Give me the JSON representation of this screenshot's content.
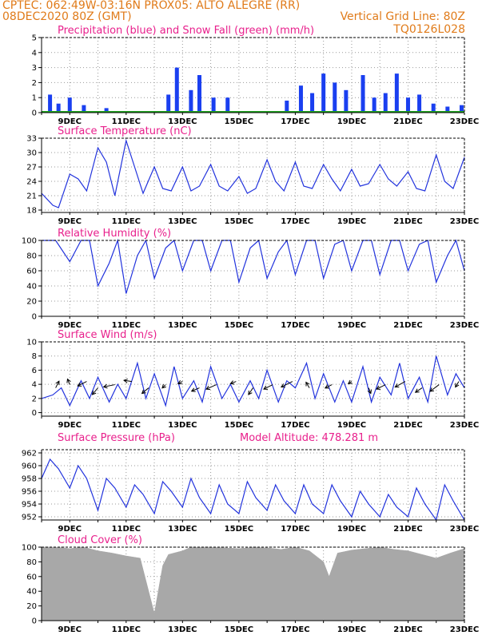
{
  "header": {
    "line1_left": "CPTEC:   062:49W-03:16N   PROX05: ALTO ALEGRE (RR)",
    "line2_left": "08DEC2020 80Z (GMT)",
    "line2_right": "Vertical Grid Line: 80Z",
    "line3_right": "TQ0126L028"
  },
  "x_axis_labels": [
    "9DEC",
    "11DEC",
    "13DEC",
    "15DEC",
    "17DEC",
    "19DEC",
    "21DEC",
    "23DEC"
  ],
  "colors": {
    "precip": "#1a3ff0",
    "snow": "#1fa31f",
    "line": "#2233dd",
    "cloud": "#a8a8a8",
    "title": "#e8208c",
    "header": "#e07b1a"
  },
  "chart_data": [
    {
      "type": "bar",
      "title": "Precipitation (blue) and Snow Fall (green) (mm/h)",
      "yticks": [
        0,
        1,
        2,
        3,
        4,
        5
      ],
      "ylim": [
        0,
        5
      ],
      "xlim": [
        8,
        23
      ],
      "grid": true,
      "series": [
        {
          "name": "Precipitation",
          "x": [
            8.3,
            8.6,
            9.0,
            9.5,
            10.3,
            12.5,
            12.8,
            13.3,
            13.6,
            14.1,
            14.6,
            16.7,
            17.2,
            17.6,
            18.0,
            18.4,
            18.8,
            19.4,
            19.8,
            20.2,
            20.6,
            21.0,
            21.4,
            21.9,
            22.4,
            22.9
          ],
          "values": [
            1.2,
            0.6,
            1.0,
            0.5,
            0.3,
            1.2,
            3.0,
            1.5,
            2.5,
            1.0,
            1.0,
            0.8,
            1.8,
            1.3,
            2.6,
            2.0,
            1.5,
            2.5,
            1.0,
            1.3,
            2.6,
            1.0,
            1.2,
            0.6,
            0.4,
            0.5
          ]
        },
        {
          "name": "Snow Fall",
          "x": [
            8.0,
            23.0
          ],
          "values": [
            0.05,
            0.05
          ]
        }
      ]
    },
    {
      "type": "line",
      "title": "Surface Temperature (nC)",
      "yticks": [
        18,
        21,
        24,
        27,
        30,
        33
      ],
      "ylim": [
        17.5,
        33
      ],
      "xlim": [
        8,
        23
      ],
      "grid": true,
      "x": [
        8.0,
        8.4,
        8.6,
        9.0,
        9.3,
        9.6,
        10.0,
        10.3,
        10.6,
        11.0,
        11.3,
        11.6,
        12.0,
        12.3,
        12.6,
        13.0,
        13.3,
        13.6,
        14.0,
        14.3,
        14.6,
        15.0,
        15.3,
        15.6,
        16.0,
        16.3,
        16.6,
        17.0,
        17.3,
        17.6,
        18.0,
        18.3,
        18.6,
        19.0,
        19.3,
        19.6,
        20.0,
        20.3,
        20.6,
        21.0,
        21.3,
        21.6,
        22.0,
        22.3,
        22.6,
        23.0
      ],
      "values": [
        21.5,
        19.0,
        18.5,
        25.5,
        24.5,
        22.0,
        31.0,
        28.0,
        21.0,
        32.5,
        27.0,
        21.5,
        27.0,
        22.5,
        22.0,
        27.0,
        22.0,
        23.0,
        27.5,
        23.0,
        22.0,
        25.0,
        21.5,
        22.5,
        28.5,
        24.0,
        22.0,
        28.0,
        23.0,
        22.5,
        27.5,
        24.5,
        22.0,
        26.5,
        23.0,
        23.5,
        27.5,
        24.5,
        23.0,
        26.0,
        22.5,
        22.0,
        29.5,
        24.0,
        22.5,
        29.0
      ]
    },
    {
      "type": "line",
      "title": "Relative Humidity (%)",
      "yticks": [
        0,
        20,
        40,
        60,
        80,
        100
      ],
      "ylim": [
        0,
        100
      ],
      "xlim": [
        8,
        23
      ],
      "grid": true,
      "x": [
        8.0,
        8.5,
        9.0,
        9.4,
        9.7,
        10.0,
        10.4,
        10.7,
        11.0,
        11.4,
        11.7,
        12.0,
        12.4,
        12.7,
        13.0,
        13.4,
        13.7,
        14.0,
        14.4,
        14.7,
        15.0,
        15.4,
        15.7,
        16.0,
        16.4,
        16.7,
        17.0,
        17.4,
        17.7,
        18.0,
        18.4,
        18.7,
        19.0,
        19.4,
        19.7,
        20.0,
        20.4,
        20.7,
        21.0,
        21.4,
        21.7,
        22.0,
        22.4,
        22.7,
        23.0
      ],
      "values": [
        100,
        100,
        72,
        100,
        100,
        40,
        70,
        100,
        30,
        80,
        100,
        50,
        90,
        100,
        60,
        100,
        100,
        60,
        100,
        100,
        45,
        90,
        100,
        50,
        85,
        100,
        55,
        100,
        100,
        50,
        95,
        100,
        60,
        100,
        100,
        55,
        100,
        100,
        60,
        95,
        100,
        45,
        80,
        100,
        60
      ]
    },
    {
      "type": "line",
      "title": "Surface Wind (m/s)",
      "yticks": [
        0,
        2,
        4,
        6,
        8,
        10
      ],
      "ylim": [
        -0.5,
        10
      ],
      "xlim": [
        8,
        23
      ],
      "grid": true,
      "x": [
        8.0,
        8.4,
        8.7,
        9.0,
        9.4,
        9.7,
        10.0,
        10.4,
        10.7,
        11.0,
        11.4,
        11.7,
        12.0,
        12.4,
        12.7,
        13.0,
        13.4,
        13.7,
        14.0,
        14.4,
        14.7,
        15.0,
        15.4,
        15.7,
        16.0,
        16.4,
        16.7,
        17.0,
        17.4,
        17.7,
        18.0,
        18.4,
        18.7,
        19.0,
        19.4,
        19.7,
        20.0,
        20.4,
        20.7,
        21.0,
        21.4,
        21.7,
        22.0,
        22.4,
        22.7,
        23.0
      ],
      "values": [
        2.0,
        2.5,
        3.5,
        1.0,
        4.5,
        2.0,
        5.0,
        1.5,
        4.0,
        2.0,
        7.0,
        2.0,
        5.5,
        1.0,
        6.5,
        2.0,
        4.5,
        1.5,
        6.5,
        2.0,
        4.0,
        1.5,
        4.5,
        2.0,
        6.0,
        1.5,
        4.5,
        3.5,
        7.0,
        2.0,
        5.5,
        1.5,
        4.5,
        1.5,
        6.5,
        1.5,
        5.0,
        2.5,
        7.0,
        2.0,
        5.0,
        1.5,
        8.0,
        2.5,
        5.5,
        3.5
      ],
      "arrows": {
        "x": [
          8.5,
          9.0,
          9.6,
          10.0,
          10.6,
          11.2,
          11.8,
          12.4,
          13.0,
          13.6,
          14.2,
          14.9,
          15.5,
          16.2,
          16.9,
          17.5,
          18.3,
          19.0,
          19.6,
          20.2,
          20.9,
          21.5,
          22.1,
          22.8
        ],
        "u": [
          0.3,
          -0.2,
          -0.8,
          -0.5,
          -1.0,
          -0.7,
          -0.6,
          -0.3,
          -0.4,
          -0.7,
          -0.9,
          -0.5,
          -0.4,
          -0.8,
          -1.0,
          -0.3,
          -0.6,
          -0.3,
          0.2,
          -0.8,
          -0.9,
          -0.6,
          -0.8,
          -0.3
        ],
        "v": [
          0.6,
          0.5,
          -0.4,
          -0.6,
          -0.2,
          0.1,
          -0.5,
          -0.3,
          -0.2,
          -0.3,
          -0.4,
          -0.2,
          -0.6,
          -0.4,
          -0.5,
          0.5,
          -0.3,
          -0.2,
          -0.5,
          -0.4,
          -0.5,
          -0.4,
          -0.6,
          -0.5
        ]
      }
    },
    {
      "type": "line",
      "title": "Surface Pressure (hPa)",
      "annotation": "Model Altitude: 478.281 m",
      "yticks": [
        952,
        954,
        956,
        958,
        960,
        962
      ],
      "ylim": [
        951.5,
        962.5
      ],
      "xlim": [
        8,
        23
      ],
      "grid": true,
      "x": [
        8.0,
        8.3,
        8.6,
        9.0,
        9.3,
        9.6,
        10.0,
        10.3,
        10.6,
        11.0,
        11.3,
        11.6,
        12.0,
        12.3,
        12.6,
        13.0,
        13.3,
        13.6,
        14.0,
        14.3,
        14.6,
        15.0,
        15.3,
        15.6,
        16.0,
        16.3,
        16.6,
        17.0,
        17.3,
        17.6,
        18.0,
        18.3,
        18.6,
        19.0,
        19.3,
        19.6,
        20.0,
        20.3,
        20.6,
        21.0,
        21.3,
        21.6,
        22.0,
        22.3,
        22.6,
        23.0
      ],
      "values": [
        958.0,
        961.0,
        959.5,
        956.5,
        960.0,
        958.0,
        953.0,
        958.0,
        956.5,
        953.5,
        957.0,
        955.5,
        952.5,
        957.5,
        956.0,
        953.5,
        958.0,
        955.0,
        952.5,
        957.0,
        954.0,
        952.5,
        957.5,
        955.0,
        953.0,
        957.0,
        954.5,
        952.5,
        957.0,
        954.0,
        952.5,
        957.0,
        954.5,
        952.0,
        956.0,
        954.0,
        952.0,
        955.5,
        953.5,
        952.0,
        956.5,
        954.0,
        951.5,
        957.0,
        954.5,
        951.5
      ]
    },
    {
      "type": "area",
      "title": "Cloud Cover (%)",
      "yticks": [
        0,
        20,
        40,
        60,
        80,
        100
      ],
      "ylim": [
        0,
        100
      ],
      "xlim": [
        8,
        23
      ],
      "grid": true,
      "x": [
        8.0,
        8.5,
        9.0,
        9.5,
        10.0,
        10.5,
        11.0,
        11.5,
        11.8,
        12.0,
        12.3,
        12.5,
        13.0,
        13.3,
        13.6,
        14.0,
        14.5,
        15.0,
        15.5,
        16.0,
        16.5,
        17.0,
        17.5,
        18.0,
        18.2,
        18.5,
        19.0,
        19.5,
        20.0,
        20.5,
        21.0,
        21.5,
        22.0,
        22.5,
        23.0
      ],
      "values": [
        100,
        100,
        98,
        100,
        95,
        92,
        88,
        85,
        40,
        10,
        75,
        90,
        95,
        100,
        100,
        100,
        99,
        98,
        100,
        99,
        97,
        100,
        95,
        80,
        60,
        92,
        96,
        98,
        100,
        97,
        95,
        90,
        85,
        92,
        98
      ]
    }
  ]
}
